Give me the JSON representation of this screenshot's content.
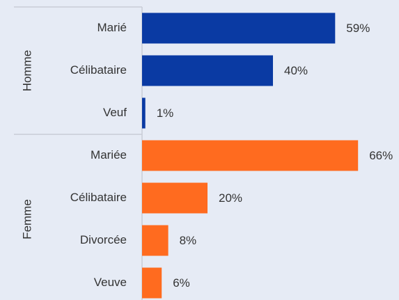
{
  "chart_data": {
    "type": "bar",
    "orientation": "horizontal",
    "groups": [
      {
        "name": "Homme",
        "color": "#0a3aa3",
        "categories": [
          "Marié",
          "Célibataire",
          "Veuf"
        ],
        "values": [
          59,
          40,
          1
        ],
        "value_labels": [
          "59%",
          "40%",
          "1%"
        ]
      },
      {
        "name": "Femme",
        "color": "#ff6b1f",
        "categories": [
          "Mariée",
          "Célibataire",
          "Divorcée",
          "Veuve"
        ],
        "values": [
          66,
          20,
          8,
          6
        ],
        "value_labels": [
          "66%",
          "20%",
          "8%",
          "6%"
        ]
      }
    ]
  }
}
